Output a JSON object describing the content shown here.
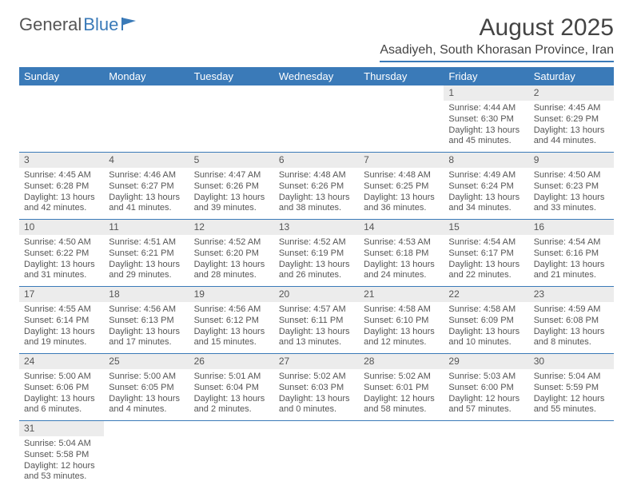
{
  "logo": {
    "part1": "General",
    "part2": "Blue"
  },
  "header": {
    "title": "August 2025",
    "location": "Asadiyeh, South Khorasan Province, Iran"
  },
  "daysOfWeek": [
    "Sunday",
    "Monday",
    "Tuesday",
    "Wednesday",
    "Thursday",
    "Friday",
    "Saturday"
  ],
  "colors": {
    "accent": "#3a7ab8",
    "headerBg": "#3a7ab8",
    "dayShade": "#ececec",
    "text": "#555"
  },
  "weeks": [
    [
      null,
      null,
      null,
      null,
      null,
      {
        "n": "1",
        "sr": "Sunrise: 4:44 AM",
        "ss": "Sunset: 6:30 PM",
        "dl": "Daylight: 13 hours and 45 minutes."
      },
      {
        "n": "2",
        "sr": "Sunrise: 4:45 AM",
        "ss": "Sunset: 6:29 PM",
        "dl": "Daylight: 13 hours and 44 minutes."
      }
    ],
    [
      {
        "n": "3",
        "sr": "Sunrise: 4:45 AM",
        "ss": "Sunset: 6:28 PM",
        "dl": "Daylight: 13 hours and 42 minutes."
      },
      {
        "n": "4",
        "sr": "Sunrise: 4:46 AM",
        "ss": "Sunset: 6:27 PM",
        "dl": "Daylight: 13 hours and 41 minutes."
      },
      {
        "n": "5",
        "sr": "Sunrise: 4:47 AM",
        "ss": "Sunset: 6:26 PM",
        "dl": "Daylight: 13 hours and 39 minutes."
      },
      {
        "n": "6",
        "sr": "Sunrise: 4:48 AM",
        "ss": "Sunset: 6:26 PM",
        "dl": "Daylight: 13 hours and 38 minutes."
      },
      {
        "n": "7",
        "sr": "Sunrise: 4:48 AM",
        "ss": "Sunset: 6:25 PM",
        "dl": "Daylight: 13 hours and 36 minutes."
      },
      {
        "n": "8",
        "sr": "Sunrise: 4:49 AM",
        "ss": "Sunset: 6:24 PM",
        "dl": "Daylight: 13 hours and 34 minutes."
      },
      {
        "n": "9",
        "sr": "Sunrise: 4:50 AM",
        "ss": "Sunset: 6:23 PM",
        "dl": "Daylight: 13 hours and 33 minutes."
      }
    ],
    [
      {
        "n": "10",
        "sr": "Sunrise: 4:50 AM",
        "ss": "Sunset: 6:22 PM",
        "dl": "Daylight: 13 hours and 31 minutes."
      },
      {
        "n": "11",
        "sr": "Sunrise: 4:51 AM",
        "ss": "Sunset: 6:21 PM",
        "dl": "Daylight: 13 hours and 29 minutes."
      },
      {
        "n": "12",
        "sr": "Sunrise: 4:52 AM",
        "ss": "Sunset: 6:20 PM",
        "dl": "Daylight: 13 hours and 28 minutes."
      },
      {
        "n": "13",
        "sr": "Sunrise: 4:52 AM",
        "ss": "Sunset: 6:19 PM",
        "dl": "Daylight: 13 hours and 26 minutes."
      },
      {
        "n": "14",
        "sr": "Sunrise: 4:53 AM",
        "ss": "Sunset: 6:18 PM",
        "dl": "Daylight: 13 hours and 24 minutes."
      },
      {
        "n": "15",
        "sr": "Sunrise: 4:54 AM",
        "ss": "Sunset: 6:17 PM",
        "dl": "Daylight: 13 hours and 22 minutes."
      },
      {
        "n": "16",
        "sr": "Sunrise: 4:54 AM",
        "ss": "Sunset: 6:16 PM",
        "dl": "Daylight: 13 hours and 21 minutes."
      }
    ],
    [
      {
        "n": "17",
        "sr": "Sunrise: 4:55 AM",
        "ss": "Sunset: 6:14 PM",
        "dl": "Daylight: 13 hours and 19 minutes."
      },
      {
        "n": "18",
        "sr": "Sunrise: 4:56 AM",
        "ss": "Sunset: 6:13 PM",
        "dl": "Daylight: 13 hours and 17 minutes."
      },
      {
        "n": "19",
        "sr": "Sunrise: 4:56 AM",
        "ss": "Sunset: 6:12 PM",
        "dl": "Daylight: 13 hours and 15 minutes."
      },
      {
        "n": "20",
        "sr": "Sunrise: 4:57 AM",
        "ss": "Sunset: 6:11 PM",
        "dl": "Daylight: 13 hours and 13 minutes."
      },
      {
        "n": "21",
        "sr": "Sunrise: 4:58 AM",
        "ss": "Sunset: 6:10 PM",
        "dl": "Daylight: 13 hours and 12 minutes."
      },
      {
        "n": "22",
        "sr": "Sunrise: 4:58 AM",
        "ss": "Sunset: 6:09 PM",
        "dl": "Daylight: 13 hours and 10 minutes."
      },
      {
        "n": "23",
        "sr": "Sunrise: 4:59 AM",
        "ss": "Sunset: 6:08 PM",
        "dl": "Daylight: 13 hours and 8 minutes."
      }
    ],
    [
      {
        "n": "24",
        "sr": "Sunrise: 5:00 AM",
        "ss": "Sunset: 6:06 PM",
        "dl": "Daylight: 13 hours and 6 minutes."
      },
      {
        "n": "25",
        "sr": "Sunrise: 5:00 AM",
        "ss": "Sunset: 6:05 PM",
        "dl": "Daylight: 13 hours and 4 minutes."
      },
      {
        "n": "26",
        "sr": "Sunrise: 5:01 AM",
        "ss": "Sunset: 6:04 PM",
        "dl": "Daylight: 13 hours and 2 minutes."
      },
      {
        "n": "27",
        "sr": "Sunrise: 5:02 AM",
        "ss": "Sunset: 6:03 PM",
        "dl": "Daylight: 13 hours and 0 minutes."
      },
      {
        "n": "28",
        "sr": "Sunrise: 5:02 AM",
        "ss": "Sunset: 6:01 PM",
        "dl": "Daylight: 12 hours and 58 minutes."
      },
      {
        "n": "29",
        "sr": "Sunrise: 5:03 AM",
        "ss": "Sunset: 6:00 PM",
        "dl": "Daylight: 12 hours and 57 minutes."
      },
      {
        "n": "30",
        "sr": "Sunrise: 5:04 AM",
        "ss": "Sunset: 5:59 PM",
        "dl": "Daylight: 12 hours and 55 minutes."
      }
    ],
    [
      {
        "n": "31",
        "sr": "Sunrise: 5:04 AM",
        "ss": "Sunset: 5:58 PM",
        "dl": "Daylight: 12 hours and 53 minutes."
      },
      null,
      null,
      null,
      null,
      null,
      null
    ]
  ]
}
